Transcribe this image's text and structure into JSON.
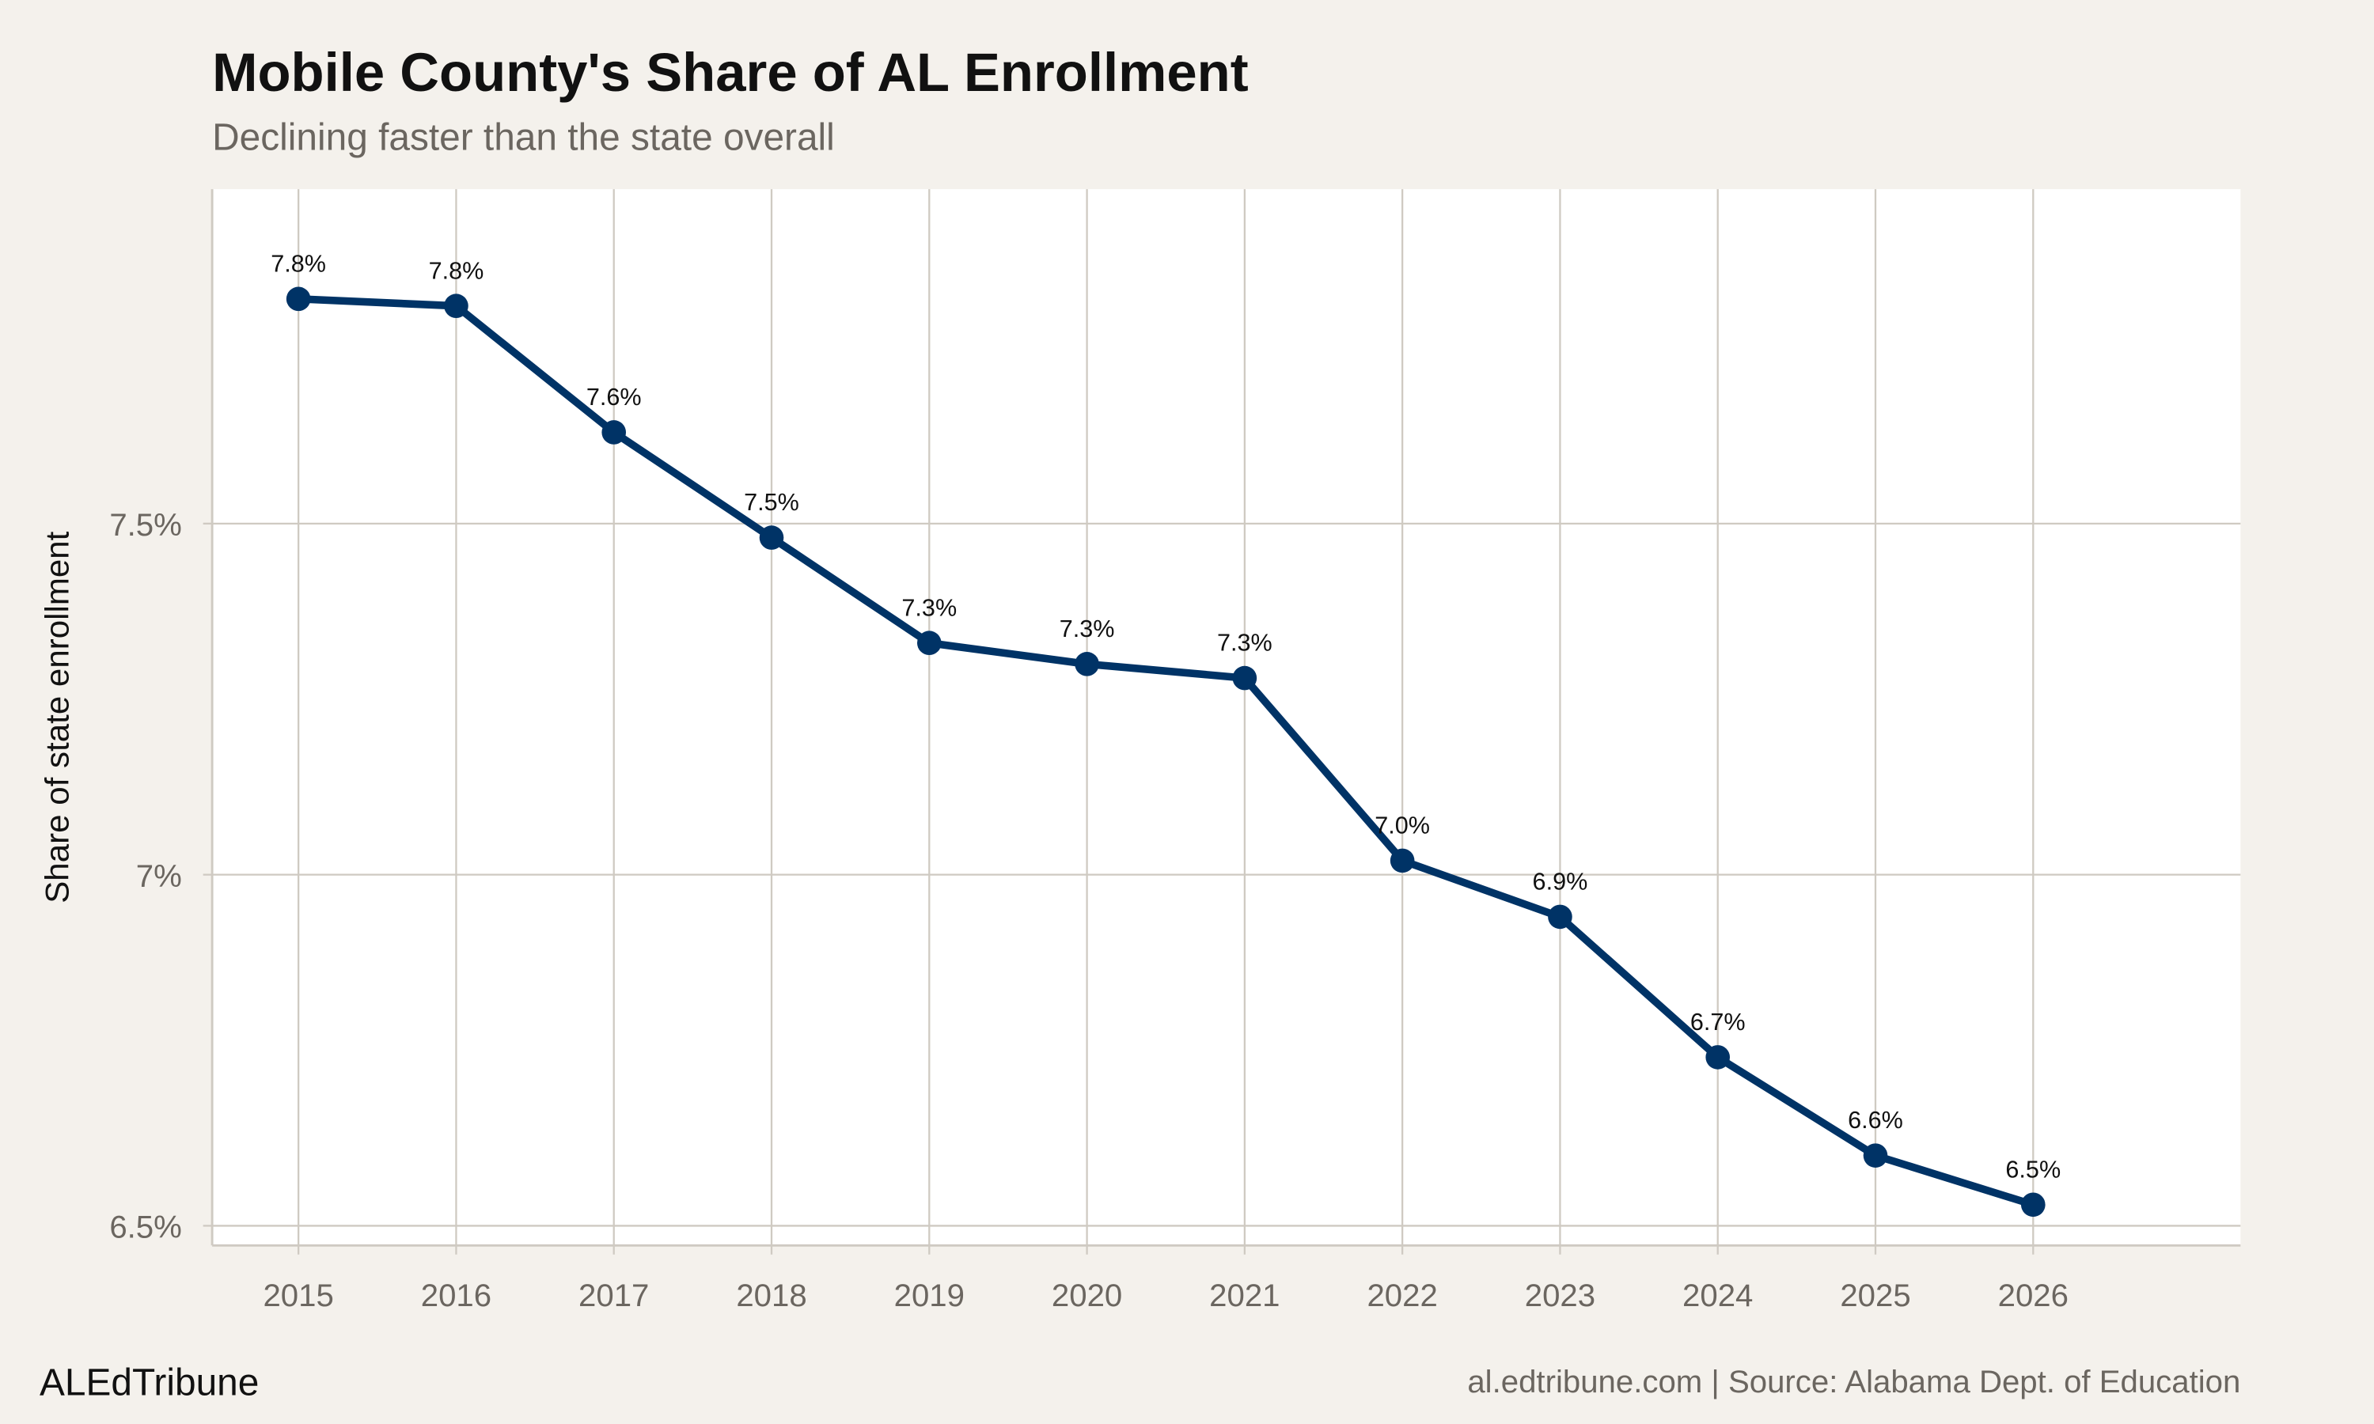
{
  "chart_data": {
    "type": "line",
    "title": "Mobile County's Share of AL Enrollment",
    "subtitle": "Declining faster than the state overall",
    "xlabel": "",
    "ylabel": "Share of state enrollment",
    "x": [
      2015,
      2016,
      2017,
      2018,
      2019,
      2020,
      2021,
      2022,
      2023,
      2024,
      2025,
      2026
    ],
    "values": [
      7.82,
      7.81,
      7.63,
      7.48,
      7.33,
      7.3,
      7.28,
      7.02,
      6.94,
      6.74,
      6.6,
      6.53
    ],
    "data_labels": [
      "7.8%",
      "7.8%",
      "7.6%",
      "7.5%",
      "7.3%",
      "7.3%",
      "7.3%",
      "7.0%",
      "6.9%",
      "6.7%",
      "6.6%",
      "6.5%"
    ],
    "y_ticks": [
      6.5,
      7.0,
      7.5
    ],
    "y_tick_labels": [
      "6.5%",
      "7%",
      "7.5%"
    ],
    "x_tick_labels": [
      "2015",
      "2016",
      "2017",
      "2018",
      "2019",
      "2020",
      "2021",
      "2022",
      "2023",
      "2024",
      "2025",
      "2026"
    ],
    "ylim": [
      6.47,
      7.97
    ],
    "xlim": [
      2014.45,
      2027.3
    ],
    "grid": true,
    "line_color": "#003366",
    "background": "#f4f1ec",
    "panel_background": "#ffffff",
    "grid_color": "#cfcac2"
  },
  "footer": {
    "brand": "ALEdTribune",
    "caption": "al.edtribune.com | Source: Alabama Dept. of Education"
  }
}
